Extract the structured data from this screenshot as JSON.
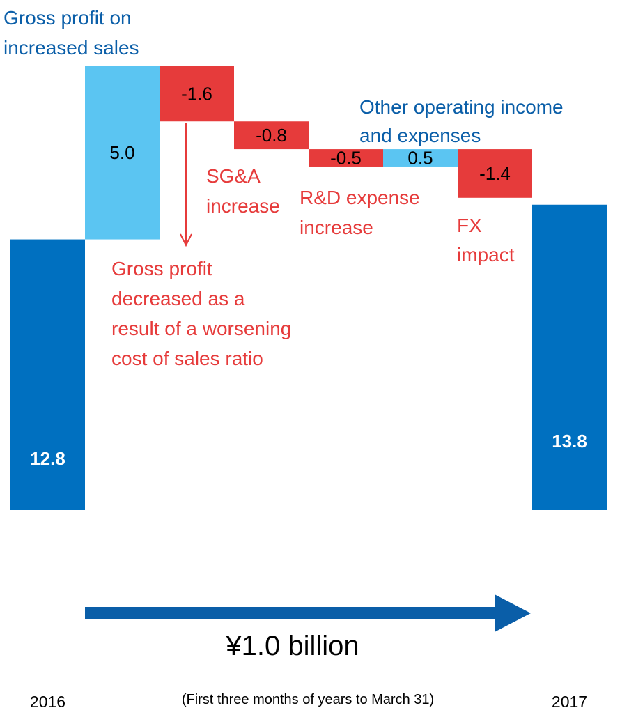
{
  "chart_data": {
    "type": "waterfall",
    "subtitle": "(First three months of years to March 31)",
    "categories": [
      "2016",
      null,
      null,
      null,
      null,
      null,
      null,
      "2017"
    ],
    "values": [
      12.8,
      5.0,
      -1.6,
      -0.8,
      -0.5,
      0.5,
      -1.4,
      13.8
    ],
    "value_labels": [
      "12.8",
      "5.0",
      "-1.6",
      "-0.8",
      "-0.5",
      "0.5",
      "-1.4",
      "13.8"
    ],
    "colors": {
      "total": "#0070c0",
      "increase": "#5bc5f2",
      "decrease": "#e63b3b"
    },
    "ylim": [
      5,
      18
    ],
    "annotations": [
      {
        "lines": [
          "Gross profit on",
          "increased sales"
        ],
        "color": "#0a5ea8"
      },
      {
        "lines": [
          "SG&A",
          "increase"
        ],
        "color": "#e63b3b"
      },
      {
        "lines": [
          "R&D expense",
          "increase"
        ],
        "color": "#e63b3b"
      },
      {
        "lines": [
          "Other operating income",
          "and expenses"
        ],
        "color": "#0a5ea8"
      },
      {
        "lines": [
          "FX",
          "impact"
        ],
        "color": "#e63b3b"
      },
      {
        "lines": [
          "Gross profit",
          "decreased as a",
          "result of a worsening",
          "cost of sales ratio"
        ],
        "color": "#e63b3b"
      }
    ],
    "change_label": "¥1.0 billion"
  }
}
